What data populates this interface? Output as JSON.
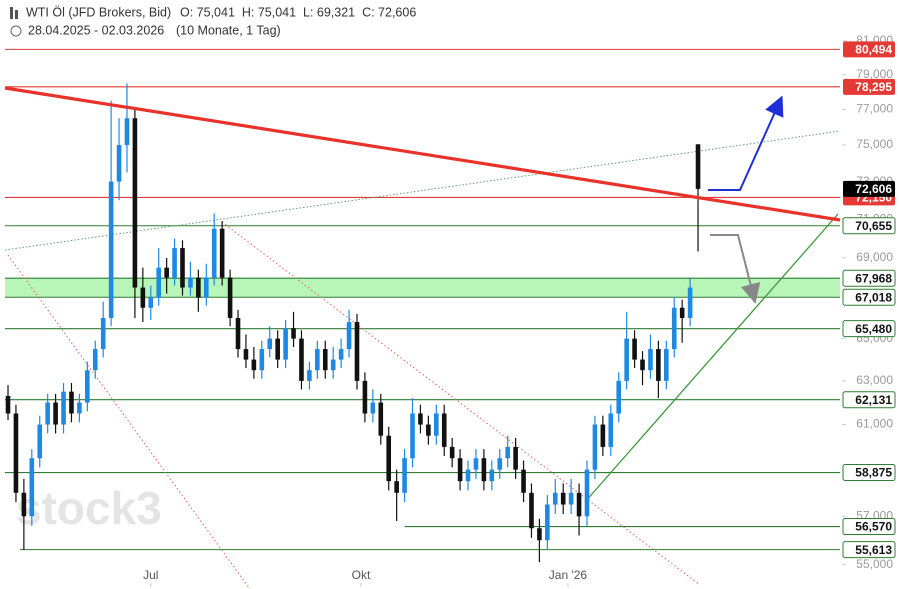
{
  "header": {
    "title": "WTI Öl (JFD Brokers, Bid)",
    "ohlc": "O: 75,041  H: 75,041  L: 69,321  C: 72,606",
    "range": "28.04.2025 - 02.03.2026",
    "span": "(10 Monate, 1 Tag)"
  },
  "chart_data": {
    "type": "candlestick",
    "watermark": "stock3",
    "log_scale": true,
    "up_color": "#1e88e5",
    "down_color": "#111111",
    "xlim": [
      -0.38,
      104.9
    ],
    "ylim": [
      54.6,
      82
    ],
    "xticks": [
      {
        "value": 18,
        "label": "Jul"
      },
      {
        "value": 44.5,
        "label": "Okt"
      },
      {
        "value": 70.6,
        "label": "Jan '26"
      }
    ],
    "yticks": [
      {
        "value": 55,
        "label": "55,000"
      },
      {
        "value": 57,
        "label": "57,000"
      },
      {
        "value": 59,
        "label": "59,000"
      },
      {
        "value": 61,
        "label": "61,000"
      },
      {
        "value": 63,
        "label": "63,000"
      },
      {
        "value": 65,
        "label": "65,000"
      },
      {
        "value": 67,
        "label": "67,000"
      },
      {
        "value": 69,
        "label": "69,000"
      },
      {
        "value": 71,
        "label": "71,000"
      },
      {
        "value": 73,
        "label": "73,000"
      },
      {
        "value": 75,
        "label": "75,000"
      },
      {
        "value": 77,
        "label": "77,000"
      },
      {
        "value": 79,
        "label": "79,000"
      },
      {
        "value": 81,
        "label": "81,000"
      }
    ],
    "levels": [
      {
        "value": 80.494,
        "label": "80,494",
        "color": "#e53935",
        "style": "red"
      },
      {
        "value": 78.295,
        "label": "78,295",
        "color": "#e53935",
        "style": "red"
      },
      {
        "value": 72.15,
        "label": "72,150",
        "color": "#e53935",
        "style": "red"
      },
      {
        "value": 70.655,
        "label": "70,655",
        "color": "#2e7d32",
        "style": "green"
      },
      {
        "value": 67.968,
        "label": "67,968",
        "color": "#2e7d32",
        "style": "green"
      },
      {
        "value": 67.018,
        "label": "67,018",
        "color": "#2e7d32",
        "style": "green"
      },
      {
        "value": 65.48,
        "label": "65,480",
        "color": "#2e7d32",
        "style": "green"
      },
      {
        "value": 62.131,
        "label": "62,131",
        "color": "#2e7d32",
        "style": "green"
      },
      {
        "value": 58.875,
        "label": "58,875",
        "color": "#2e7d32",
        "style": "green"
      },
      {
        "value": 56.57,
        "label": "56,570",
        "color": "#2e7d32",
        "style": "green",
        "from": 50
      },
      {
        "value": 55.613,
        "label": "55,613",
        "color": "#2e7d32",
        "style": "green",
        "from": 1.5
      },
      {
        "value": 72.606,
        "label": "72,606",
        "color": "#000000",
        "style": "price"
      }
    ],
    "band": {
      "low": 67.018,
      "high": 67.968,
      "color": "#b8f5b8"
    },
    "candles": [
      [
        62.3,
        62.8,
        61.2,
        61.5
      ],
      [
        61.5,
        61.9,
        57.6,
        58.0
      ],
      [
        58.0,
        58.6,
        55.6,
        57.0
      ],
      [
        57.0,
        59.9,
        56.6,
        59.5
      ],
      [
        59.5,
        61.4,
        59.1,
        61.0
      ],
      [
        61.0,
        62.4,
        60.6,
        62.0
      ],
      [
        62.0,
        62.4,
        60.6,
        61.0
      ],
      [
        61.0,
        62.9,
        60.6,
        62.5
      ],
      [
        62.5,
        62.9,
        61.1,
        61.5
      ],
      [
        61.5,
        62.4,
        61.1,
        62.0
      ],
      [
        62.0,
        63.9,
        61.6,
        63.5
      ],
      [
        63.5,
        64.9,
        63.1,
        64.5
      ],
      [
        64.5,
        66.8,
        64.1,
        66.0
      ],
      [
        66.0,
        77.5,
        65.6,
        73.0
      ],
      [
        73.0,
        76.5,
        72.0,
        75.0
      ],
      [
        75.0,
        78.5,
        73.5,
        76.5
      ],
      [
        76.5,
        77.0,
        66.0,
        67.5
      ],
      [
        67.5,
        68.5,
        65.8,
        66.5
      ],
      [
        66.5,
        67.6,
        65.9,
        67.0
      ],
      [
        67.0,
        69.5,
        66.6,
        68.5
      ],
      [
        68.5,
        69.0,
        67.2,
        68.0
      ],
      [
        68.0,
        70.0,
        67.6,
        69.5
      ],
      [
        69.5,
        69.9,
        67.1,
        67.5
      ],
      [
        67.5,
        68.8,
        67.1,
        68.0
      ],
      [
        68.0,
        68.4,
        66.3,
        67.0
      ],
      [
        67.0,
        68.7,
        66.6,
        68.0
      ],
      [
        68.0,
        71.3,
        67.6,
        70.5
      ],
      [
        70.5,
        70.9,
        67.6,
        68.0
      ],
      [
        68.0,
        68.4,
        65.6,
        66.0
      ],
      [
        66.0,
        66.4,
        64.1,
        64.5
      ],
      [
        64.5,
        65.2,
        63.6,
        64.0
      ],
      [
        64.0,
        64.6,
        63.1,
        63.5
      ],
      [
        63.5,
        64.9,
        63.1,
        64.5
      ],
      [
        64.5,
        65.6,
        64.1,
        65.0
      ],
      [
        65.0,
        65.4,
        63.6,
        64.0
      ],
      [
        64.0,
        65.9,
        63.6,
        65.5
      ],
      [
        65.5,
        66.3,
        64.6,
        65.0
      ],
      [
        65.0,
        65.4,
        62.6,
        63.0
      ],
      [
        63.0,
        63.9,
        62.6,
        63.5
      ],
      [
        63.5,
        64.9,
        63.1,
        64.5
      ],
      [
        64.5,
        64.9,
        63.1,
        63.5
      ],
      [
        63.5,
        64.6,
        63.1,
        64.0
      ],
      [
        64.0,
        65.0,
        63.6,
        64.5
      ],
      [
        64.5,
        66.4,
        64.1,
        65.8
      ],
      [
        65.8,
        66.2,
        62.6,
        63.0
      ],
      [
        63.0,
        63.4,
        61.1,
        61.5
      ],
      [
        61.5,
        62.6,
        61.1,
        62.0
      ],
      [
        62.0,
        62.4,
        60.1,
        60.5
      ],
      [
        60.5,
        60.9,
        58.1,
        58.5
      ],
      [
        58.5,
        59.0,
        56.8,
        58.0
      ],
      [
        58.0,
        59.9,
        57.6,
        59.5
      ],
      [
        59.5,
        62.2,
        59.1,
        61.5
      ],
      [
        61.5,
        61.9,
        60.6,
        61.0
      ],
      [
        61.0,
        61.4,
        60.1,
        60.5
      ],
      [
        60.5,
        61.9,
        60.1,
        61.5
      ],
      [
        61.5,
        61.9,
        59.6,
        60.0
      ],
      [
        60.0,
        60.4,
        59.1,
        59.5
      ],
      [
        59.5,
        59.9,
        58.1,
        58.5
      ],
      [
        58.5,
        59.4,
        58.1,
        59.0
      ],
      [
        59.0,
        59.9,
        58.6,
        59.5
      ],
      [
        59.5,
        59.9,
        58.1,
        58.5
      ],
      [
        58.5,
        59.4,
        58.1,
        59.0
      ],
      [
        59.0,
        59.9,
        58.6,
        59.5
      ],
      [
        59.5,
        60.5,
        59.1,
        60.0
      ],
      [
        60.0,
        60.4,
        58.6,
        59.0
      ],
      [
        59.0,
        59.4,
        57.6,
        58.0
      ],
      [
        58.0,
        58.4,
        56.1,
        56.5
      ],
      [
        56.5,
        56.9,
        55.1,
        56.0
      ],
      [
        56.0,
        57.9,
        55.6,
        57.5
      ],
      [
        57.5,
        58.6,
        57.1,
        58.0
      ],
      [
        58.0,
        58.4,
        57.1,
        57.5
      ],
      [
        57.5,
        58.6,
        57.1,
        58.0
      ],
      [
        58.0,
        58.4,
        56.2,
        57.0
      ],
      [
        57.0,
        59.4,
        56.6,
        59.0
      ],
      [
        59.0,
        61.4,
        58.6,
        61.0
      ],
      [
        61.0,
        61.4,
        59.6,
        60.0
      ],
      [
        60.0,
        61.9,
        59.6,
        61.5
      ],
      [
        61.5,
        63.4,
        61.1,
        63.0
      ],
      [
        63.0,
        66.3,
        62.6,
        65.0
      ],
      [
        65.0,
        65.4,
        63.6,
        64.0
      ],
      [
        64.0,
        64.4,
        62.8,
        63.5
      ],
      [
        63.5,
        65.2,
        63.1,
        64.5
      ],
      [
        64.5,
        64.9,
        62.2,
        63.0
      ],
      [
        63.0,
        64.9,
        62.6,
        64.5
      ],
      [
        64.5,
        67.0,
        64.1,
        66.5
      ],
      [
        66.5,
        66.9,
        64.8,
        66.0
      ],
      [
        66.0,
        68.0,
        65.6,
        67.5
      ],
      [
        75.041,
        75.041,
        69.321,
        72.606
      ]
    ]
  }
}
